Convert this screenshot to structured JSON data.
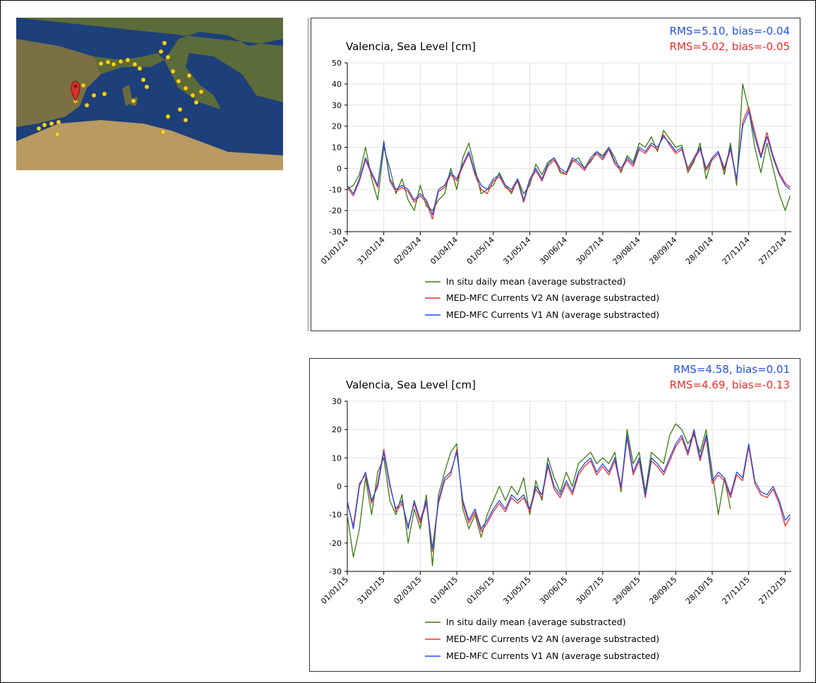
{
  "chart_data": [
    {
      "type": "line",
      "title": "Valencia, Sea Level [cm]",
      "annotations": [
        {
          "text": "RMS=5.10, bias=-0.04",
          "color": "#1f4fee"
        },
        {
          "text": "RMS=5.02, bias=-0.05",
          "color": "#ee2a2a"
        }
      ],
      "x": [
        "01/01/14",
        "06/01/14",
        "11/01/14",
        "16/01/14",
        "21/01/14",
        "26/01/14",
        "31/01/14",
        "05/02/14",
        "10/02/14",
        "15/02/14",
        "20/02/14",
        "25/02/14",
        "02/03/14",
        "07/03/14",
        "12/03/14",
        "17/03/14",
        "22/03/14",
        "27/03/14",
        "01/04/14",
        "06/04/14",
        "11/04/14",
        "16/04/14",
        "21/04/14",
        "26/04/14",
        "01/05/14",
        "06/05/14",
        "11/05/14",
        "16/05/14",
        "21/05/14",
        "26/05/14",
        "31/05/14",
        "05/06/14",
        "10/06/14",
        "15/06/14",
        "20/06/14",
        "25/06/14",
        "30/06/14",
        "05/07/14",
        "10/07/14",
        "15/07/14",
        "20/07/14",
        "25/07/14",
        "30/07/14",
        "04/08/14",
        "09/08/14",
        "14/08/14",
        "19/08/14",
        "24/08/14",
        "29/08/14",
        "03/09/14",
        "08/09/14",
        "13/09/14",
        "18/09/14",
        "23/09/14",
        "28/09/14",
        "03/10/14",
        "08/10/14",
        "13/10/14",
        "18/10/14",
        "23/10/14",
        "28/10/14",
        "02/11/14",
        "07/11/14",
        "12/11/14",
        "17/11/14",
        "22/11/14",
        "27/11/14",
        "02/12/14",
        "07/12/14",
        "12/12/14",
        "17/12/14",
        "22/12/14",
        "27/12/14",
        "31/12/14"
      ],
      "series": [
        {
          "name": "In situ daily mean (average substracted)",
          "color": "#3a7a10",
          "values": [
            -10,
            -8,
            -3,
            10,
            -5,
            -15,
            10,
            0,
            -12,
            -5,
            -15,
            -20,
            -8,
            -18,
            -20,
            -15,
            -12,
            0,
            -10,
            5,
            12,
            0,
            -12,
            -10,
            -8,
            -2,
            -8,
            -12,
            -5,
            -12,
            -8,
            2,
            -3,
            3,
            5,
            -2,
            -3,
            3,
            5,
            0,
            3,
            8,
            6,
            10,
            5,
            -2,
            6,
            3,
            12,
            10,
            15,
            8,
            18,
            14,
            10,
            11,
            -2,
            3,
            12,
            -5,
            5,
            8,
            -3,
            12,
            -8,
            40,
            28,
            10,
            -2,
            12,
            0,
            -12,
            -20,
            -13
          ]
        },
        {
          "name": "MED-MFC Currents V2 AN (average substracted)",
          "color": "#ee2a2a",
          "values": [
            -9,
            -13,
            -6,
            4,
            -3,
            -9,
            13,
            -6,
            -11,
            -9,
            -11,
            -16,
            -13,
            -16,
            -24,
            -11,
            -9,
            -3,
            -6,
            1,
            7,
            -3,
            -10,
            -12,
            -6,
            -4,
            -9,
            -11,
            -6,
            -16,
            -6,
            -1,
            -6,
            1,
            4,
            -1,
            -3,
            4,
            2,
            -1,
            4,
            7,
            4,
            9,
            2,
            -1,
            4,
            1,
            9,
            7,
            11,
            9,
            16,
            11,
            7,
            9,
            -1,
            4,
            9,
            -1,
            4,
            7,
            -1,
            9,
            -6,
            22,
            29,
            17,
            6,
            17,
            6,
            -2,
            -7,
            -9
          ]
        },
        {
          "name": "MED-MFC Currents V1 AN (average substracted)",
          "color": "#1f4fee",
          "values": [
            -8,
            -12,
            -5,
            5,
            -2,
            -8,
            12,
            -5,
            -10,
            -8,
            -10,
            -15,
            -12,
            -15,
            -22,
            -10,
            -8,
            -2,
            -5,
            2,
            8,
            -2,
            -8,
            -10,
            -5,
            -3,
            -8,
            -10,
            -5,
            -15,
            -5,
            0,
            -5,
            2,
            5,
            0,
            -2,
            5,
            3,
            0,
            5,
            8,
            5,
            10,
            3,
            0,
            5,
            2,
            10,
            8,
            12,
            10,
            15,
            12,
            8,
            10,
            0,
            5,
            10,
            0,
            5,
            8,
            0,
            10,
            -5,
            20,
            27,
            15,
            5,
            15,
            5,
            -3,
            -8,
            -10
          ]
        }
      ],
      "xlim": [
        "01/01/14",
        "01/01/15"
      ],
      "xticks": [
        "01/01/14",
        "31/01/14",
        "02/03/14",
        "01/04/14",
        "01/05/14",
        "31/05/14",
        "30/06/14",
        "30/07/14",
        "29/08/14",
        "28/09/14",
        "28/10/14",
        "27/11/14",
        "27/12/14"
      ],
      "ylim": [
        -30,
        50
      ],
      "yticks": [
        -30,
        -20,
        -10,
        0,
        10,
        20,
        30,
        40,
        50
      ],
      "grid": true
    },
    {
      "type": "line",
      "title": "Valencia, Sea Level [cm]",
      "annotations": [
        {
          "text": "RMS=4.58, bias=0.01",
          "color": "#1f4fee"
        },
        {
          "text": "RMS=4.69, bias=-0.13",
          "color": "#ee2a2a"
        }
      ],
      "x": [
        "01/01/15",
        "06/01/15",
        "11/01/15",
        "16/01/15",
        "21/01/15",
        "26/01/15",
        "31/01/15",
        "05/02/15",
        "10/02/15",
        "15/02/15",
        "20/02/15",
        "25/02/15",
        "02/03/15",
        "07/03/15",
        "12/03/15",
        "17/03/15",
        "22/03/15",
        "27/03/15",
        "01/04/15",
        "06/04/15",
        "11/04/15",
        "16/04/15",
        "21/04/15",
        "26/04/15",
        "01/05/15",
        "06/05/15",
        "11/05/15",
        "16/05/15",
        "21/05/15",
        "26/05/15",
        "31/05/15",
        "05/06/15",
        "10/06/15",
        "15/06/15",
        "20/06/15",
        "25/06/15",
        "30/06/15",
        "05/07/15",
        "10/07/15",
        "15/07/15",
        "20/07/15",
        "25/07/15",
        "30/07/15",
        "04/08/15",
        "09/08/15",
        "14/08/15",
        "19/08/15",
        "24/08/15",
        "29/08/15",
        "03/09/15",
        "08/09/15",
        "13/09/15",
        "18/09/15",
        "23/09/15",
        "28/09/15",
        "03/10/15",
        "08/10/15",
        "13/10/15",
        "18/10/15",
        "23/10/15",
        "28/10/15",
        "02/11/15",
        "07/11/15",
        "12/11/15",
        "17/11/15",
        "22/11/15",
        "27/11/15",
        "02/12/15",
        "07/12/15",
        "12/12/15",
        "17/12/15",
        "22/12/15",
        "27/12/15",
        "31/12/15"
      ],
      "series": [
        {
          "name": "In situ daily mean (average substracted)",
          "color": "#3a7a10",
          "values": [
            -10,
            -25,
            -15,
            3,
            -10,
            5,
            10,
            -5,
            -10,
            -3,
            -20,
            -8,
            -15,
            -3,
            -28,
            -3,
            5,
            12,
            15,
            -8,
            -15,
            -10,
            -18,
            -10,
            -5,
            0,
            -5,
            0,
            -3,
            3,
            -10,
            2,
            -5,
            10,
            3,
            -2,
            5,
            0,
            8,
            10,
            12,
            8,
            10,
            8,
            12,
            -2,
            20,
            8,
            12,
            -2,
            12,
            10,
            8,
            18,
            22,
            20,
            15,
            18,
            12,
            20,
            5,
            -10,
            3,
            -8,
            null,
            null,
            null,
            null,
            null,
            null,
            null,
            null,
            null,
            null
          ]
        },
        {
          "name": "MED-MFC Currents V2 AN (average substracted)",
          "color": "#ee2a2a",
          "values": [
            -6,
            -14,
            1,
            4,
            -6,
            1,
            13,
            1,
            -9,
            -6,
            -14,
            -6,
            -13,
            -6,
            -23,
            -6,
            2,
            4,
            13,
            -6,
            -13,
            -9,
            -16,
            -13,
            -9,
            -6,
            -9,
            -4,
            -6,
            -4,
            -9,
            -1,
            -4,
            7,
            -1,
            -4,
            1,
            -3,
            4,
            7,
            9,
            4,
            7,
            4,
            9,
            -1,
            17,
            4,
            9,
            -4,
            9,
            7,
            4,
            9,
            14,
            17,
            11,
            19,
            9,
            17,
            1,
            4,
            2,
            -4,
            4,
            2,
            14,
            1,
            -3,
            -4,
            -1,
            -6,
            -14,
            -11
          ]
        },
        {
          "name": "MED-MFC Currents V1 AN (average substracted)",
          "color": "#1f4fee",
          "values": [
            -5,
            -15,
            0,
            5,
            -5,
            0,
            12,
            0,
            -8,
            -5,
            -15,
            -5,
            -12,
            -5,
            -22,
            -5,
            3,
            5,
            12,
            -5,
            -12,
            -8,
            -15,
            -12,
            -8,
            -5,
            -8,
            -3,
            -5,
            -3,
            -8,
            0,
            -3,
            8,
            0,
            -3,
            2,
            -2,
            5,
            8,
            10,
            5,
            8,
            5,
            10,
            0,
            18,
            5,
            10,
            -3,
            10,
            8,
            5,
            10,
            15,
            18,
            12,
            20,
            10,
            18,
            2,
            5,
            3,
            -3,
            5,
            3,
            15,
            2,
            -2,
            -3,
            0,
            -5,
            -12,
            -10
          ]
        }
      ],
      "xlim": [
        "01/01/15",
        "01/01/16"
      ],
      "xticks": [
        "01/01/15",
        "31/01/15",
        "02/03/15",
        "01/04/15",
        "01/05/15",
        "31/05/15",
        "30/06/15",
        "30/07/15",
        "29/08/15",
        "28/09/15",
        "28/10/15",
        "27/11/15",
        "27/12/15"
      ],
      "ylim": [
        -30,
        30
      ],
      "yticks": [
        -30,
        -20,
        -10,
        0,
        10,
        20,
        30
      ],
      "grid": true
    }
  ]
}
